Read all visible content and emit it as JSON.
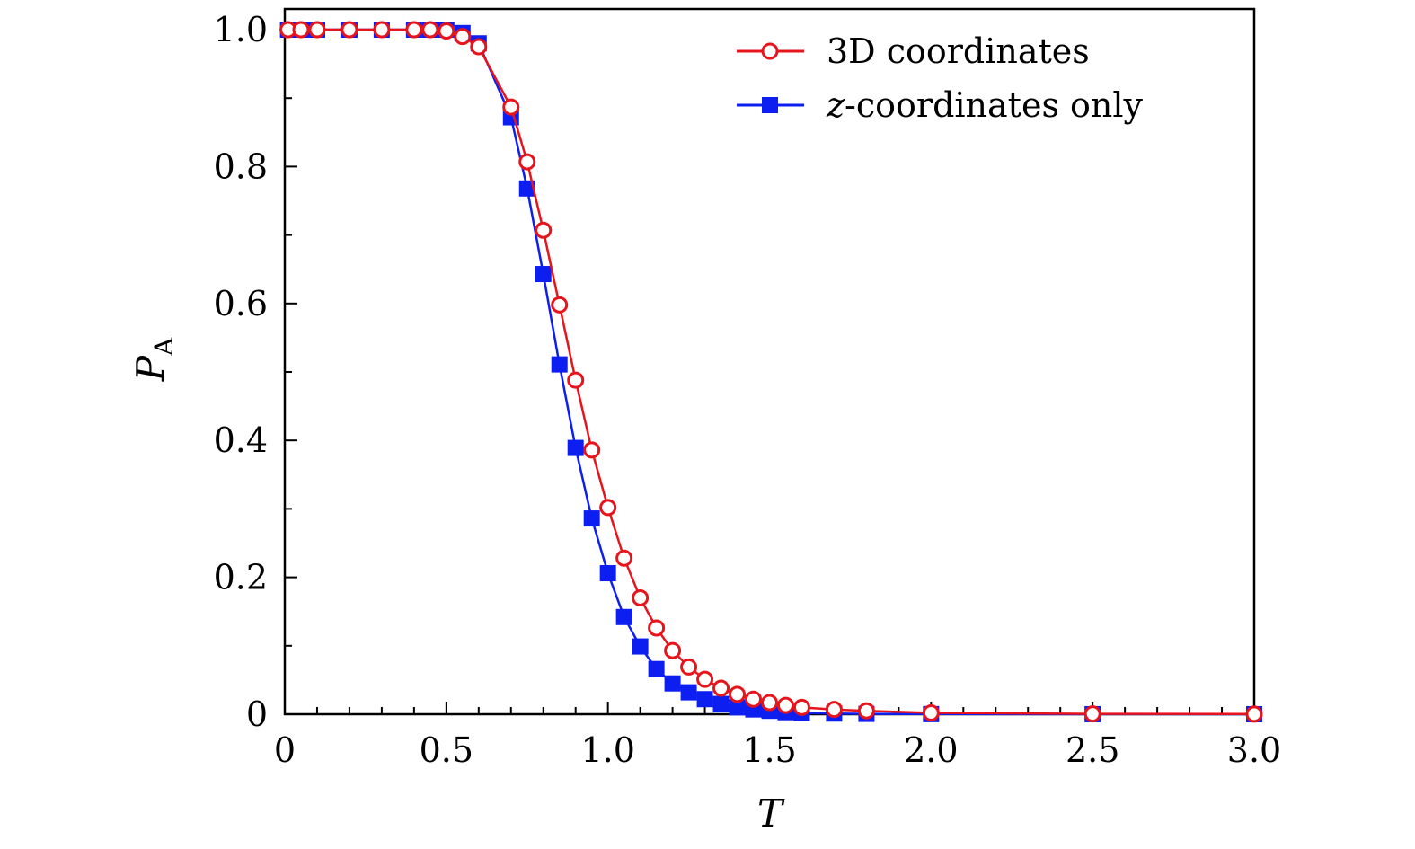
{
  "chart_data": {
    "type": "line",
    "title": "",
    "xlabel": "T",
    "ylabel": {
      "main": "P",
      "sub": "A"
    },
    "xlim": [
      0,
      3.0
    ],
    "ylim": [
      0,
      1.03
    ],
    "x_ticks": [
      0,
      0.5,
      1.0,
      1.5,
      2.0,
      2.5,
      3.0
    ],
    "x_tick_labels": [
      "0",
      "0.5",
      "1.0",
      "1.5",
      "2.0",
      "2.5",
      "3.0"
    ],
    "y_ticks": [
      0,
      0.2,
      0.4,
      0.6,
      0.8,
      1.0
    ],
    "y_tick_labels": [
      "0",
      "0.2",
      "0.4",
      "0.6",
      "0.8",
      "1.0"
    ],
    "grid": false,
    "legend_position": "top-right",
    "series": [
      {
        "name": "3D coordinates",
        "color": "#e8141c",
        "marker": "open-circle",
        "x": [
          0.01,
          0.05,
          0.1,
          0.2,
          0.3,
          0.4,
          0.45,
          0.5,
          0.55,
          0.6,
          0.7,
          0.75,
          0.8,
          0.85,
          0.9,
          0.95,
          1.0,
          1.05,
          1.1,
          1.15,
          1.2,
          1.25,
          1.3,
          1.35,
          1.4,
          1.45,
          1.5,
          1.55,
          1.6,
          1.7,
          1.8,
          2.0,
          2.5,
          3.0
        ],
        "y": [
          1.0,
          1.0,
          1.0,
          1.0,
          1.0,
          1.0,
          1.0,
          0.998,
          0.99,
          0.975,
          0.887,
          0.807,
          0.707,
          0.598,
          0.488,
          0.386,
          0.302,
          0.228,
          0.17,
          0.126,
          0.093,
          0.069,
          0.051,
          0.038,
          0.029,
          0.022,
          0.017,
          0.013,
          0.01,
          0.007,
          0.005,
          0.002,
          0.0005,
          0.0002
        ]
      },
      {
        "name": "z-coordinates only",
        "name_italic_prefix": "z",
        "name_rest": "-coordinates only",
        "color": "#0d1ef0",
        "marker": "filled-square",
        "x": [
          0.01,
          0.05,
          0.1,
          0.2,
          0.3,
          0.4,
          0.45,
          0.5,
          0.55,
          0.6,
          0.7,
          0.75,
          0.8,
          0.85,
          0.9,
          0.95,
          1.0,
          1.05,
          1.1,
          1.15,
          1.2,
          1.25,
          1.3,
          1.35,
          1.4,
          1.45,
          1.5,
          1.55,
          1.6,
          1.7,
          1.8,
          2.0,
          2.5,
          3.0
        ],
        "y": [
          1.0,
          1.0,
          1.0,
          1.0,
          1.0,
          1.0,
          1.0,
          1.0,
          0.995,
          0.98,
          0.872,
          0.768,
          0.643,
          0.511,
          0.389,
          0.286,
          0.206,
          0.142,
          0.099,
          0.066,
          0.045,
          0.032,
          0.022,
          0.015,
          0.01,
          0.007,
          0.005,
          0.003,
          0.002,
          0.001,
          0.0005,
          0.0002,
          0.0001,
          0.0
        ]
      }
    ]
  }
}
